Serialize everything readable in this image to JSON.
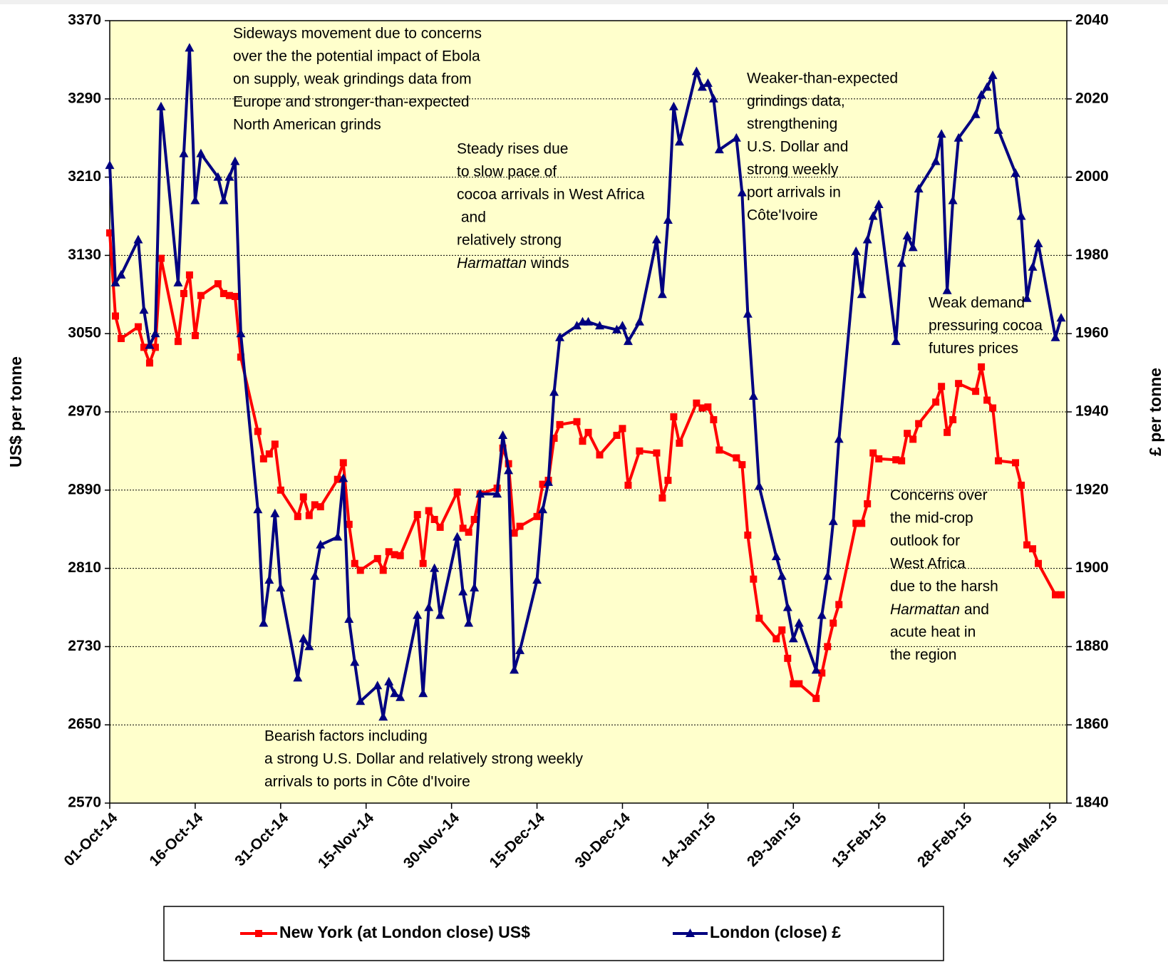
{
  "chart_data": {
    "type": "line",
    "x": [
      "2014-10-01",
      "2014-10-02",
      "2014-10-03",
      "2014-10-06",
      "2014-10-07",
      "2014-10-08",
      "2014-10-09",
      "2014-10-10",
      "2014-10-13",
      "2014-10-14",
      "2014-10-15",
      "2014-10-16",
      "2014-10-17",
      "2014-10-20",
      "2014-10-21",
      "2014-10-22",
      "2014-10-23",
      "2014-10-24",
      "2014-10-27",
      "2014-10-28",
      "2014-10-29",
      "2014-10-30",
      "2014-10-31",
      "2014-11-03",
      "2014-11-04",
      "2014-11-05",
      "2014-11-06",
      "2014-11-07",
      "2014-11-10",
      "2014-11-11",
      "2014-11-12",
      "2014-11-13",
      "2014-11-14",
      "2014-11-17",
      "2014-11-18",
      "2014-11-19",
      "2014-11-20",
      "2014-11-21",
      "2014-11-24",
      "2014-11-25",
      "2014-11-26",
      "2014-11-27",
      "2014-11-28",
      "2014-12-01",
      "2014-12-02",
      "2014-12-03",
      "2014-12-04",
      "2014-12-05",
      "2014-12-08",
      "2014-12-09",
      "2014-12-10",
      "2014-12-11",
      "2014-12-12",
      "2014-12-15",
      "2014-12-16",
      "2014-12-17",
      "2014-12-18",
      "2014-12-19",
      "2014-12-22",
      "2014-12-23",
      "2014-12-24",
      "2014-12-26",
      "2014-12-29",
      "2014-12-30",
      "2014-12-31",
      "2015-01-02",
      "2015-01-05",
      "2015-01-06",
      "2015-01-07",
      "2015-01-08",
      "2015-01-09",
      "2015-01-12",
      "2015-01-13",
      "2015-01-14",
      "2015-01-15",
      "2015-01-16",
      "2015-01-19",
      "2015-01-20",
      "2015-01-21",
      "2015-01-22",
      "2015-01-23",
      "2015-01-26",
      "2015-01-27",
      "2015-01-28",
      "2015-01-29",
      "2015-01-30",
      "2015-02-02",
      "2015-02-03",
      "2015-02-04",
      "2015-02-05",
      "2015-02-06",
      "2015-02-09",
      "2015-02-10",
      "2015-02-11",
      "2015-02-12",
      "2015-02-13",
      "2015-02-16",
      "2015-02-17",
      "2015-02-18",
      "2015-02-19",
      "2015-02-20",
      "2015-02-23",
      "2015-02-24",
      "2015-02-25",
      "2015-02-26",
      "2015-02-27",
      "2015-03-02",
      "2015-03-03",
      "2015-03-04",
      "2015-03-05",
      "2015-03-06",
      "2015-03-09",
      "2015-03-10",
      "2015-03-11",
      "2015-03-12",
      "2015-03-13",
      "2015-03-16",
      "2015-03-17"
    ],
    "xlim": [
      "2014-10-01",
      "2015-03-18"
    ],
    "xticks": [
      {
        "value": "2014-10-01",
        "label": "01-Oct-14"
      },
      {
        "value": "2014-10-16",
        "label": "16-Oct-14"
      },
      {
        "value": "2014-10-31",
        "label": "31-Oct-14"
      },
      {
        "value": "2014-11-15",
        "label": "15-Nov-14"
      },
      {
        "value": "2014-11-30",
        "label": "30-Nov-14"
      },
      {
        "value": "2014-12-15",
        "label": "15-Dec-14"
      },
      {
        "value": "2014-12-30",
        "label": "30-Dec-14"
      },
      {
        "value": "2015-01-14",
        "label": "14-Jan-15"
      },
      {
        "value": "2015-01-29",
        "label": "29-Jan-15"
      },
      {
        "value": "2015-02-13",
        "label": "13-Feb-15"
      },
      {
        "value": "2015-02-28",
        "label": "28-Feb-15"
      },
      {
        "value": "2015-03-15",
        "label": "15-Mar-15"
      }
    ],
    "ylim": [
      2570,
      3370
    ],
    "yticks": [
      2570,
      2650,
      2730,
      2810,
      2890,
      2970,
      3050,
      3130,
      3210,
      3290,
      3370
    ],
    "y2lim": [
      1840,
      2040
    ],
    "y2ticks": [
      1840,
      1860,
      1880,
      1900,
      1920,
      1940,
      1960,
      1980,
      2000,
      2020,
      2040
    ],
    "ylabel": "US$ per tonne",
    "y2label": "£ per tonne",
    "grid": true,
    "legend": "bottom",
    "series": [
      {
        "name": "New York (at London close) US$",
        "color": "#ff0000",
        "marker": "square",
        "values": [
          3153,
          3068,
          3045,
          3057,
          3036,
          3020,
          3036,
          3127,
          3042,
          3091,
          3110,
          3048,
          3089,
          3101,
          3091,
          3089,
          3088,
          3026,
          2950,
          2922,
          2927,
          2937,
          2890,
          2863,
          2883,
          2864,
          2875,
          2873,
          2901,
          2918,
          2855,
          2815,
          2808,
          2820,
          2808,
          2827,
          2824,
          2823,
          2865,
          2815,
          2869,
          2860,
          2852,
          2888,
          2851,
          2847,
          2860,
          2886,
          2892,
          2933,
          2917,
          2846,
          2853,
          2863,
          2896,
          2900,
          2943,
          2957,
          2960,
          2940,
          2949,
          2926,
          2946,
          2953,
          2895,
          2930,
          2928,
          2882,
          2900,
          2965,
          2938,
          2979,
          2974,
          2975,
          2962,
          2931,
          2923,
          2916,
          2844,
          2799,
          2759,
          2738,
          2747,
          2718,
          2692,
          2692,
          2677,
          2703,
          2730,
          2754,
          2773,
          2856,
          2856,
          2876,
          2928,
          2922,
          2921,
          2920,
          2948,
          2942,
          2958,
          2980,
          2996,
          2949,
          2962,
          2999,
          2991,
          3016,
          2982,
          2974,
          2920,
          2918,
          2895,
          2834,
          2830,
          2815,
          2783,
          2783
        ]
      },
      {
        "name": "London (close) £",
        "color": "#000080",
        "marker": "triangle",
        "axis": "y2",
        "values": [
          2003,
          1973,
          1975,
          1984,
          1966,
          1957,
          1960,
          2018,
          1973,
          2006,
          2033,
          1994,
          2006,
          2000,
          1994,
          2000,
          2004,
          1960,
          1915,
          1886,
          1897,
          1914,
          1895,
          1872,
          1882,
          1880,
          1898,
          1906,
          1908,
          1923,
          1887,
          1876,
          1866,
          1870,
          1862,
          1871,
          1868,
          1867,
          1888,
          1868,
          1890,
          1900,
          1888,
          1908,
          1894,
          1886,
          1895,
          1919,
          1919,
          1934,
          1925,
          1874,
          1879,
          1897,
          1915,
          1922,
          1945,
          1959,
          1962,
          1963,
          1963,
          1962,
          1961,
          1962,
          1958,
          1963,
          1984,
          1970,
          1989,
          2018,
          2009,
          2027,
          2023,
          2024,
          2020,
          2007,
          2010,
          1996,
          1965,
          1944,
          1921,
          1903,
          1898,
          1890,
          1882,
          1886,
          1874,
          1888,
          1898,
          1912,
          1933,
          1981,
          1970,
          1984,
          1990,
          1993,
          1958,
          1978,
          1985,
          1982,
          1997,
          2004,
          2011,
          1971,
          1994,
          2010,
          2016,
          2021,
          2023,
          2026,
          2012,
          2001,
          1990,
          1969,
          1977,
          1983,
          1959,
          1964
        ]
      }
    ],
    "annotations": [
      {
        "lines": [
          "Sideways movement due to concerns",
          "over the the potential impact of Ebola",
          "on supply, weak grindings data from",
          "Europe and stronger-than-expected",
          "North American grinds"
        ]
      },
      {
        "lines": [
          "Steady rises due",
          "to slow pace of",
          "cocoa arrivals in West Africa",
          " and",
          "relatively strong",
          [
            {
              "text": "Harmattan",
              "italic": true
            },
            {
              "text": " winds"
            }
          ]
        ]
      },
      {
        "lines": [
          "Weaker-than-expected",
          "grindings data,",
          "strengthening",
          "U.S. Dollar and",
          "strong weekly",
          "port arrivals in",
          "Côte'Ivoire"
        ]
      },
      {
        "lines": [
          "Weak demand",
          "pressuring cocoa",
          "futures prices"
        ]
      },
      {
        "lines": [
          "Concerns over",
          "the mid-crop",
          "outlook for",
          "West Africa",
          "due to the harsh",
          [
            {
              "text": "Harmattan",
              "italic": true
            },
            {
              "text": " and"
            }
          ],
          "acute heat in",
          "the region"
        ]
      },
      {
        "lines": [
          "Bearish factors including",
          "a strong U.S. Dollar and relatively strong weekly",
          "arrivals to ports in Côte d'Ivoire"
        ]
      }
    ]
  }
}
